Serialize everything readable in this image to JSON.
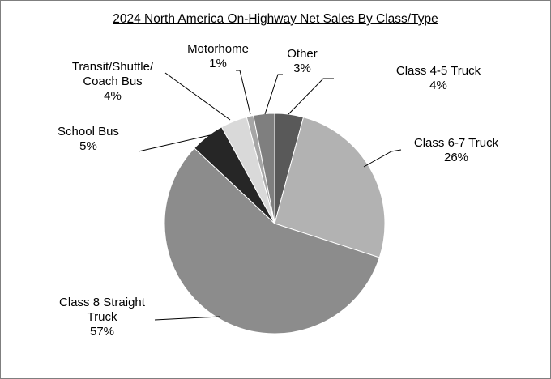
{
  "chart_data": {
    "type": "pie",
    "title": "2024 North America On-Highway Net Sales By Class/Type",
    "start_angle_deg": 0,
    "direction": "clockwise",
    "legend": "none",
    "slices": [
      {
        "label_lines": [
          "Class 4-5 Truck"
        ],
        "percent_label": "4%",
        "value": 4.2,
        "color": "#595959"
      },
      {
        "label_lines": [
          "Class 6-7 Truck"
        ],
        "percent_label": "26%",
        "value": 25.8,
        "color": "#b2b2b2"
      },
      {
        "label_lines": [
          "Class 8 Straight",
          "Truck"
        ],
        "percent_label": "57%",
        "value": 57.0,
        "color": "#8c8c8c"
      },
      {
        "label_lines": [
          "School Bus"
        ],
        "percent_label": "5%",
        "value": 5.0,
        "color": "#262626"
      },
      {
        "label_lines": [
          "Transit/Shuttle/",
          "Coach Bus"
        ],
        "percent_label": "4%",
        "value": 3.9,
        "color": "#d9d9d9"
      },
      {
        "label_lines": [
          "Motorhome"
        ],
        "percent_label": "1%",
        "value": 1.0,
        "color": "#a6a6a6"
      },
      {
        "label_lines": [
          "Other"
        ],
        "percent_label": "3%",
        "value": 3.1,
        "color": "#7f7f7f"
      }
    ]
  }
}
